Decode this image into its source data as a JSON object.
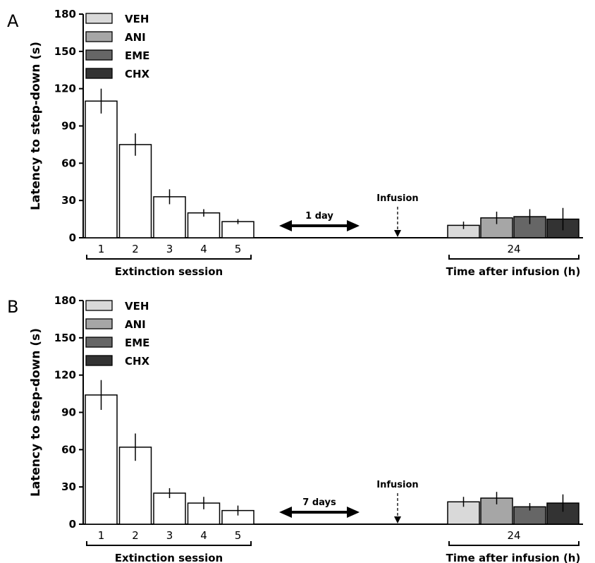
{
  "colors": {
    "VEH": "#d9d9d9",
    "ANI": "#a6a6a6",
    "EME": "#666666",
    "CHX": "#333333",
    "extinction": "#ffffff",
    "stroke": "#000000"
  },
  "chart_data": [
    {
      "type": "bar",
      "panel_letter": "A",
      "ylabel": "Latency to step-down (s)",
      "ylim": [
        0,
        180
      ],
      "yticks": [
        0,
        30,
        60,
        90,
        120,
        150,
        180
      ],
      "legend": {
        "placement": "top-left",
        "entries": [
          "VEH",
          "ANI",
          "EME",
          "CHX"
        ]
      },
      "groups": [
        {
          "label": "Extinction session",
          "categories": [
            "1",
            "2",
            "3",
            "4",
            "5"
          ],
          "values": [
            110,
            75,
            33,
            20,
            13
          ],
          "errors": [
            10,
            9,
            6,
            3,
            2
          ]
        },
        {
          "label": "Time after infusion (h)",
          "categories": [
            "24"
          ],
          "series": [
            {
              "name": "VEH",
              "values": [
                10
              ],
              "errors": [
                3
              ]
            },
            {
              "name": "ANI",
              "values": [
                16
              ],
              "errors": [
                5
              ]
            },
            {
              "name": "EME",
              "values": [
                17
              ],
              "errors": [
                6
              ]
            },
            {
              "name": "CHX",
              "values": [
                15
              ],
              "errors": [
                9
              ]
            }
          ]
        }
      ],
      "gap_arrow_label": "1 day",
      "infusion_label": "Infusion"
    },
    {
      "type": "bar",
      "panel_letter": "B",
      "ylabel": "Latency to step-down (s)",
      "ylim": [
        0,
        180
      ],
      "yticks": [
        0,
        30,
        60,
        90,
        120,
        150,
        180
      ],
      "legend": {
        "placement": "top-left",
        "entries": [
          "VEH",
          "ANI",
          "EME",
          "CHX"
        ]
      },
      "groups": [
        {
          "label": "Extinction session",
          "categories": [
            "1",
            "2",
            "3",
            "4",
            "5"
          ],
          "values": [
            104,
            62,
            25,
            17,
            11
          ],
          "errors": [
            12,
            11,
            4,
            5,
            4
          ]
        },
        {
          "label": "Time after infusion (h)",
          "categories": [
            "24"
          ],
          "series": [
            {
              "name": "VEH",
              "values": [
                18
              ],
              "errors": [
                4
              ]
            },
            {
              "name": "ANI",
              "values": [
                21
              ],
              "errors": [
                5
              ]
            },
            {
              "name": "EME",
              "values": [
                14
              ],
              "errors": [
                3
              ]
            },
            {
              "name": "CHX",
              "values": [
                17
              ],
              "errors": [
                7
              ]
            }
          ]
        }
      ],
      "gap_arrow_label": "7 days",
      "infusion_label": "Infusion"
    }
  ]
}
